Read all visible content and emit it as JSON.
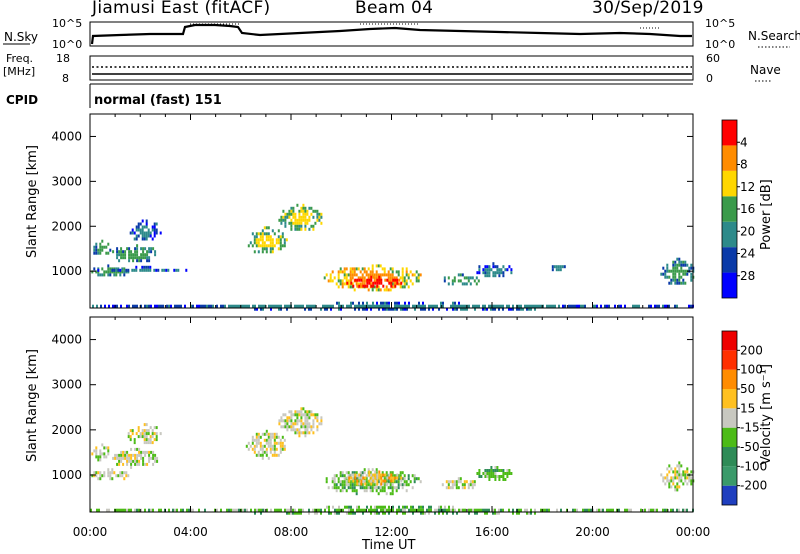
{
  "header": {
    "station": "Jiamusi East (fitACF)",
    "beam": "Beam 04",
    "date": "30/Sep/2019"
  },
  "summary_panels": {
    "nsky": {
      "label": "N.Sky",
      "ticks": [
        "10^5",
        "10^0"
      ]
    },
    "nsearch": {
      "label": "N.Search",
      "ticks": [
        "10^5",
        "10^0"
      ]
    },
    "freq": {
      "label_top": "Freq.",
      "label_bottom": "[MHz]",
      "ticks": [
        "18",
        "8"
      ]
    },
    "nave": {
      "label": "Nave",
      "ticks": [
        "60",
        "0"
      ]
    },
    "cpid": {
      "label": "CPID",
      "mode_text": "normal (fast) 151"
    }
  },
  "chart_data": [
    {
      "type": "heatmap",
      "name": "power",
      "ylabel": "Slant Range [km]",
      "xlabel": "",
      "ylim": [
        180,
        4500
      ],
      "yticks": [
        "1000",
        "2000",
        "3000",
        "4000"
      ],
      "ytick_values": [
        1000,
        2000,
        3000,
        4000
      ],
      "xlim_hours": [
        0,
        24
      ],
      "colorbar": {
        "label": "Power [dB]",
        "tick_labels": [
          "4",
          "8",
          "12",
          "16",
          "20",
          "24",
          "28"
        ],
        "colors": [
          "#0000ff",
          "#0a3aa8",
          "#2d8a8a",
          "#3a9a4a",
          "#ffd700",
          "#ff8c00",
          "#ff0000"
        ]
      },
      "features": [
        {
          "t0": 0.05,
          "t1": 1.5,
          "r0": 900,
          "r1": 1150,
          "level": 2
        },
        {
          "t0": 0.8,
          "t1": 2.7,
          "r0": 1200,
          "r1": 1600,
          "level": 2
        },
        {
          "t0": 1.5,
          "t1": 2.8,
          "r0": 1700,
          "r1": 2150,
          "level": 1
        },
        {
          "t0": 0.05,
          "t1": 0.8,
          "r0": 1350,
          "r1": 1700,
          "level": 2
        },
        {
          "t0": 0.05,
          "t1": 4.0,
          "r0": 1030,
          "r1": 1120,
          "level": 1
        },
        {
          "t0": 6.2,
          "t1": 7.8,
          "r0": 1400,
          "r1": 2000,
          "level": 3
        },
        {
          "t0": 7.5,
          "t1": 9.2,
          "r0": 1900,
          "r1": 2500,
          "level": 3
        },
        {
          "t0": 9.3,
          "t1": 13.2,
          "r0": 600,
          "r1": 1150,
          "level": 4
        },
        {
          "t0": 10.2,
          "t1": 12.4,
          "r0": 650,
          "r1": 900,
          "level": 6
        },
        {
          "t0": 14.0,
          "t1": 15.5,
          "r0": 700,
          "r1": 950,
          "level": 2
        },
        {
          "t0": 15.3,
          "t1": 16.8,
          "r0": 900,
          "r1": 1200,
          "level": 1
        },
        {
          "t0": 18.3,
          "t1": 19.0,
          "r0": 1000,
          "r1": 1200,
          "level": 1
        },
        {
          "t0": 22.7,
          "t1": 24.0,
          "r0": 700,
          "r1": 1300,
          "level": 2
        },
        {
          "t0": 0.0,
          "t1": 24.0,
          "r0": 180,
          "r1": 320,
          "level": 1
        }
      ]
    },
    {
      "type": "heatmap",
      "name": "velocity",
      "ylabel": "Slant Range [km]",
      "xlabel": "Time UT",
      "ylim": [
        180,
        4500
      ],
      "yticks": [
        "1000",
        "2000",
        "3000",
        "4000"
      ],
      "ytick_values": [
        1000,
        2000,
        3000,
        4000
      ],
      "xlim_hours": [
        0,
        24
      ],
      "xticks": [
        "00:00",
        "04:00",
        "08:00",
        "12:00",
        "16:00",
        "20:00",
        "00:00"
      ],
      "colorbar": {
        "label": "Velocity [m s⁻¹]",
        "tick_labels": [
          "200",
          "100",
          "50",
          "15",
          "-15",
          "-50",
          "-100",
          "-200"
        ],
        "colors": [
          "#1f3fbf",
          "#3a9a6a",
          "#2e8b57",
          "#4cbb17",
          "#c8c8c0",
          "#ffc020",
          "#ff8c00",
          "#ff3000",
          "#ee0000"
        ]
      },
      "features": [
        {
          "t0": 0.05,
          "t1": 1.5,
          "r0": 900,
          "r1": 1150,
          "level": 4
        },
        {
          "t0": 0.8,
          "t1": 2.7,
          "r0": 1200,
          "r1": 1600,
          "level": 4
        },
        {
          "t0": 1.5,
          "t1": 2.8,
          "r0": 1700,
          "r1": 2150,
          "level": 4
        },
        {
          "t0": 0.05,
          "t1": 0.8,
          "r0": 1350,
          "r1": 1700,
          "level": 4
        },
        {
          "t0": 6.2,
          "t1": 7.8,
          "r0": 1400,
          "r1": 2000,
          "level": 4
        },
        {
          "t0": 7.5,
          "t1": 9.2,
          "r0": 1900,
          "r1": 2500,
          "level": 4
        },
        {
          "t0": 9.3,
          "t1": 13.2,
          "r0": 600,
          "r1": 1150,
          "level": 3
        },
        {
          "t0": 10.2,
          "t1": 12.4,
          "r0": 800,
          "r1": 1100,
          "level": 5
        },
        {
          "t0": 14.0,
          "t1": 15.5,
          "r0": 700,
          "r1": 950,
          "level": 4
        },
        {
          "t0": 15.3,
          "t1": 16.8,
          "r0": 900,
          "r1": 1200,
          "level": 3
        },
        {
          "t0": 22.7,
          "t1": 24.0,
          "r0": 700,
          "r1": 1300,
          "level": 4
        },
        {
          "t0": 0.0,
          "t1": 24.0,
          "r0": 180,
          "r1": 320,
          "level": 3
        }
      ]
    }
  ],
  "colors": {
    "background": "#ffffff",
    "axis": "#000000"
  }
}
